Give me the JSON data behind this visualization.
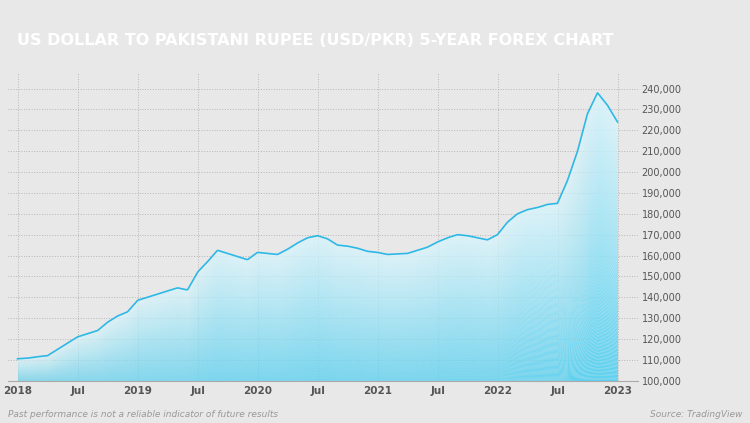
{
  "title": "US DOLLAR TO PAKISTANI RUPEE (USD/PKR) 5-YEAR FOREX CHART",
  "title_bg_color": "#7B4F2E",
  "title_text_color": "#FFFFFF",
  "bg_color": "#E8E8E8",
  "plot_bg_color": "#E8E8E8",
  "line_color": "#2EB8E6",
  "fill_color_top": "#5DD0F0",
  "fill_color_bottom": "#D8F4FC",
  "ylabel_color": "#555555",
  "xlabel_color": "#555555",
  "footer_left": "Past performance is not a reliable indicator of future results",
  "footer_right": "Source: TradingView",
  "footer_color": "#999999",
  "ylim": [
    100000,
    248000
  ],
  "yticks": [
    100000,
    110000,
    120000,
    130000,
    140000,
    150000,
    160000,
    170000,
    180000,
    190000,
    200000,
    210000,
    220000,
    230000,
    240000
  ],
  "xtick_labels": [
    "2018",
    "Jul",
    "2019",
    "Jul",
    "2020",
    "Jul",
    "2021",
    "Jul",
    "2022",
    "Jul",
    "2023"
  ],
  "xtick_positions": [
    0,
    6,
    12,
    18,
    24,
    30,
    36,
    42,
    48,
    54,
    60
  ],
  "data_x": [
    0,
    1,
    2,
    3,
    4,
    5,
    6,
    7,
    8,
    9,
    10,
    11,
    12,
    13,
    14,
    15,
    16,
    17,
    18,
    19,
    20,
    21,
    22,
    23,
    24,
    25,
    26,
    27,
    28,
    29,
    30,
    31,
    32,
    33,
    34,
    35,
    36,
    37,
    38,
    39,
    40,
    41,
    42,
    43,
    44,
    45,
    46,
    47,
    48,
    49,
    50,
    51,
    52,
    53,
    54,
    55,
    56,
    57,
    58,
    59,
    60
  ],
  "data_y": [
    110.5,
    110.8,
    111.5,
    112.0,
    115.0,
    118.0,
    121.0,
    122.5,
    124.0,
    128.0,
    131.0,
    133.0,
    138.5,
    140.0,
    141.5,
    143.0,
    144.5,
    143.5,
    152.0,
    157.0,
    162.5,
    161.0,
    159.5,
    158.0,
    161.5,
    161.0,
    160.5,
    163.0,
    166.0,
    168.5,
    169.5,
    168.0,
    165.0,
    164.5,
    163.5,
    162.0,
    161.5,
    160.5,
    160.8,
    161.0,
    162.5,
    164.0,
    166.5,
    168.5,
    170.0,
    169.5,
    168.5,
    167.5,
    170.0,
    176.0,
    180.0,
    182.0,
    183.0,
    184.5,
    185.0,
    196.0,
    210.0,
    228.0,
    238.0,
    232.0,
    224.0
  ]
}
